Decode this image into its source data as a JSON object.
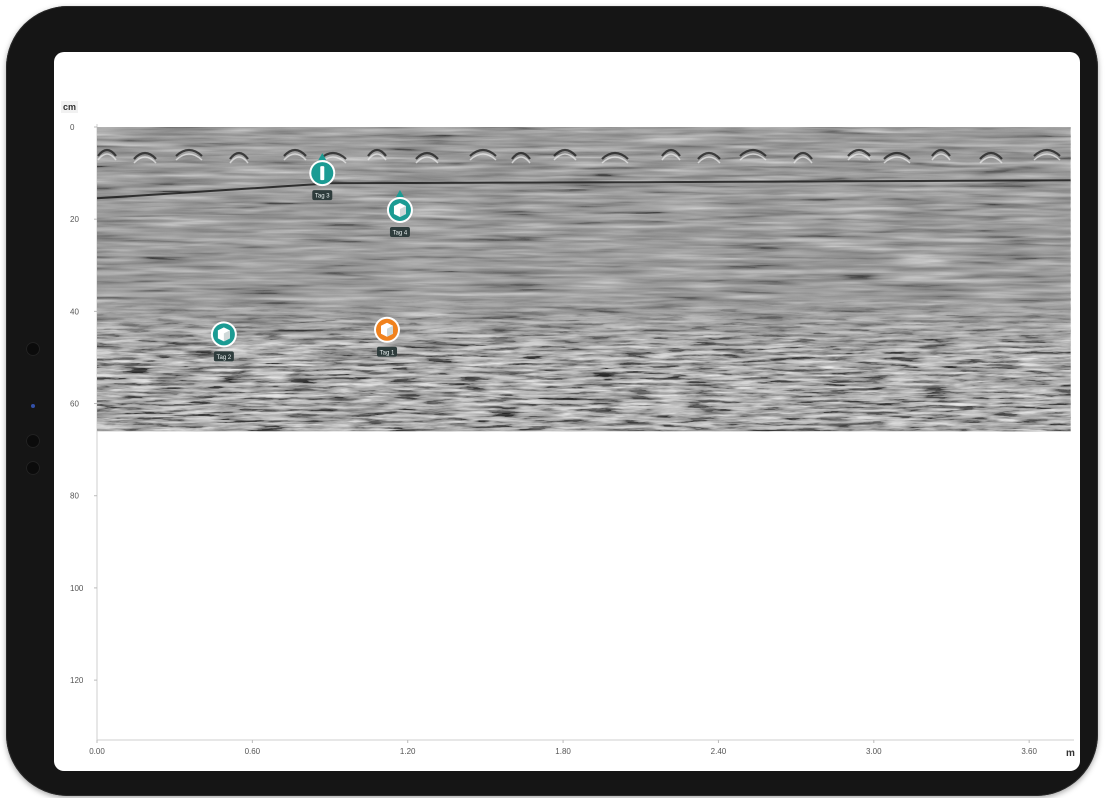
{
  "chart_data": {
    "type": "heatmap",
    "description_units": {
      "y_unit": "cm",
      "x_unit": "m"
    },
    "xlabel": "m",
    "ylabel": "cm",
    "xlim": [
      0.0,
      3.75
    ],
    "ylim": [
      0,
      133
    ],
    "scan_depth_max": 66,
    "scan_x_max": 3.76,
    "x_ticks": [
      "0.00",
      "0.60",
      "1.20",
      "1.80",
      "2.40",
      "3.00",
      "3.60"
    ],
    "y_ticks": [
      "0",
      "20",
      "40",
      "60",
      "80",
      "100",
      "120"
    ],
    "surface_reflection_depth": 12,
    "tags": [
      {
        "label": "Tag 3",
        "x": 0.87,
        "depth": 10,
        "color": "#1b9b93",
        "symbol": "rebar"
      },
      {
        "label": "Tag 4",
        "x": 1.17,
        "depth": 18,
        "color": "#1b9b93",
        "symbol": "cube"
      },
      {
        "label": "Tag 2",
        "x": 0.49,
        "depth": 45,
        "color": "#1b9b93",
        "symbol": "cube"
      },
      {
        "label": "Tag 1",
        "x": 1.12,
        "depth": 44,
        "color": "#f0821e",
        "symbol": "cube"
      }
    ]
  },
  "colors": {
    "scan_base": "#8a8a8a",
    "teal_tag": "#1b9b93",
    "orange_tag": "#f0821e",
    "bezel": "#151515"
  },
  "units": {
    "y": "cm",
    "x": "m"
  }
}
